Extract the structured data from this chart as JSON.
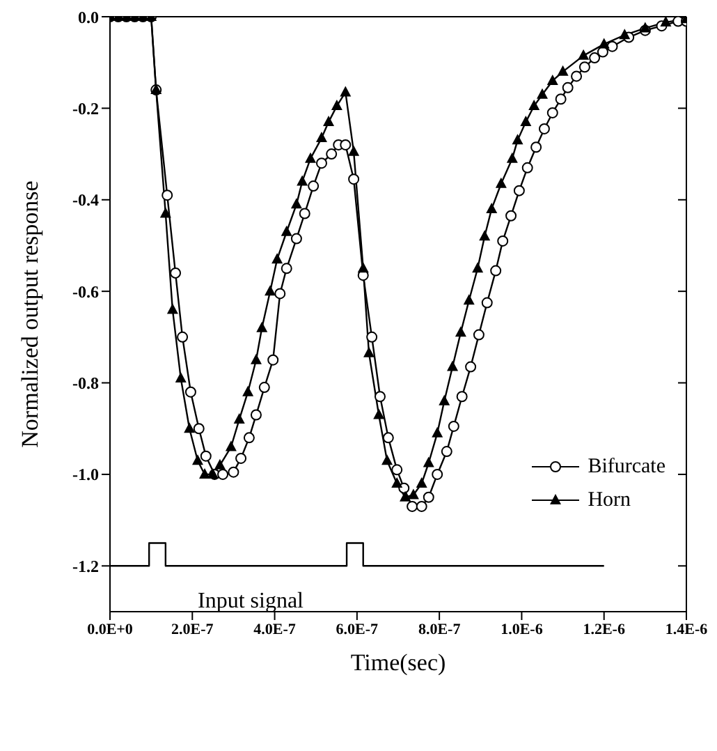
{
  "chart_data": {
    "type": "line",
    "xlabel": "Time(sec)",
    "ylabel": "Normalized output response",
    "xlim": [
      0,
      1.4e-06
    ],
    "ylim": [
      -1.3,
      0
    ],
    "xticks": [
      {
        "value": 0,
        "label": "0.0E+0"
      },
      {
        "value": 2e-07,
        "label": "2.0E-7"
      },
      {
        "value": 4e-07,
        "label": "4.0E-7"
      },
      {
        "value": 6e-07,
        "label": "6.0E-7"
      },
      {
        "value": 8e-07,
        "label": "8.0E-7"
      },
      {
        "value": 1e-06,
        "label": "1.0E-6"
      },
      {
        "value": 1.2e-06,
        "label": "1.2E-6"
      },
      {
        "value": 1.4e-06,
        "label": "1.4E-6"
      }
    ],
    "yticks": [
      {
        "value": 0,
        "label": "0.0"
      },
      {
        "value": -0.2,
        "label": "-0.2"
      },
      {
        "value": -0.4,
        "label": "-0.4"
      },
      {
        "value": -0.6,
        "label": "-0.6"
      },
      {
        "value": -0.8,
        "label": "-0.8"
      },
      {
        "value": -1,
        "label": "-1.0"
      },
      {
        "value": -1.2,
        "label": "-1.2"
      }
    ],
    "legend": "right",
    "line_style": "solid",
    "annotations": [
      "Input signal"
    ],
    "series": [
      {
        "name": "Bifurcate",
        "color": "#000000",
        "marker": "circle",
        "x": [
          0,
          2e-08,
          4e-08,
          6e-08,
          8e-08,
          1e-07,
          1.12e-07,
          1.39e-07,
          1.59e-07,
          1.76e-07,
          1.96e-07,
          2.16e-07,
          2.33e-07,
          2.54e-07,
          2.74e-07,
          3e-07,
          3.18e-07,
          3.38e-07,
          3.55e-07,
          3.75e-07,
          3.96e-07,
          4.13e-07,
          4.29e-07,
          4.53e-07,
          4.73e-07,
          4.94e-07,
          5.14e-07,
          5.38e-07,
          5.55e-07,
          5.72e-07,
          5.92e-07,
          6.15e-07,
          6.36e-07,
          6.56e-07,
          6.76e-07,
          6.97e-07,
          7.14e-07,
          7.34e-07,
          7.57e-07,
          7.74e-07,
          7.95e-07,
          8.18e-07,
          8.35e-07,
          8.55e-07,
          8.76e-07,
          8.96e-07,
          9.16e-07,
          9.37e-07,
          9.54e-07,
          9.74e-07,
          9.94e-07,
          1.014e-06,
          1.035e-06,
          1.055e-06,
          1.075e-06,
          1.095e-06,
          1.112e-06,
          1.133e-06,
          1.153e-06,
          1.177e-06,
          1.197e-06,
          1.22e-06,
          1.26e-06,
          1.3e-06,
          1.34e-06,
          1.38e-06,
          1.4e-06
        ],
        "values": [
          0,
          0,
          0,
          0,
          0,
          0,
          -0.16,
          -0.39,
          -0.56,
          -0.7,
          -0.82,
          -0.9,
          -0.96,
          -1.0,
          -1.0,
          -0.995,
          -0.965,
          -0.92,
          -0.87,
          -0.81,
          -0.75,
          -0.605,
          -0.55,
          -0.485,
          -0.43,
          -0.37,
          -0.32,
          -0.3,
          -0.28,
          -0.28,
          -0.355,
          -0.565,
          -0.7,
          -0.83,
          -0.92,
          -0.99,
          -1.03,
          -1.07,
          -1.07,
          -1.05,
          -1.0,
          -0.95,
          -0.895,
          -0.83,
          -0.765,
          -0.695,
          -0.625,
          -0.555,
          -0.49,
          -0.435,
          -0.38,
          -0.33,
          -0.285,
          -0.245,
          -0.21,
          -0.18,
          -0.155,
          -0.13,
          -0.11,
          -0.09,
          -0.077,
          -0.065,
          -0.045,
          -0.03,
          -0.02,
          -0.01,
          -0.01
        ]
      },
      {
        "name": "Horn",
        "color": "#000000",
        "marker": "triangle",
        "x": [
          0,
          2e-08,
          4e-08,
          6e-08,
          8e-08,
          1e-07,
          1.12e-07,
          1.35e-07,
          1.52e-07,
          1.72e-07,
          1.93e-07,
          2.13e-07,
          2.3e-07,
          2.5e-07,
          2.67e-07,
          2.94e-07,
          3.14e-07,
          3.35e-07,
          3.55e-07,
          3.69e-07,
          3.89e-07,
          4.06e-07,
          4.29e-07,
          4.53e-07,
          4.67e-07,
          4.87e-07,
          5.14e-07,
          5.31e-07,
          5.51e-07,
          5.72e-07,
          5.92e-07,
          6.15e-07,
          6.29e-07,
          6.53e-07,
          6.73e-07,
          6.97e-07,
          7.17e-07,
          7.37e-07,
          7.57e-07,
          7.74e-07,
          7.95e-07,
          8.12e-07,
          8.32e-07,
          8.52e-07,
          8.72e-07,
          8.93e-07,
          9.1e-07,
          9.27e-07,
          9.5e-07,
          9.77e-07,
          9.9e-07,
          1.01e-06,
          1.03e-06,
          1.05e-06,
          1.075e-06,
          1.1e-06,
          1.15e-06,
          1.2e-06,
          1.25e-06,
          1.3e-06,
          1.35e-06,
          1.4e-06
        ],
        "values": [
          0,
          0,
          0,
          0,
          0,
          0,
          -0.16,
          -0.43,
          -0.64,
          -0.79,
          -0.9,
          -0.97,
          -1.0,
          -1.0,
          -0.98,
          -0.94,
          -0.88,
          -0.82,
          -0.75,
          -0.68,
          -0.6,
          -0.53,
          -0.47,
          -0.41,
          -0.36,
          -0.31,
          -0.265,
          -0.23,
          -0.195,
          -0.165,
          -0.295,
          -0.55,
          -0.735,
          -0.87,
          -0.97,
          -1.02,
          -1.05,
          -1.045,
          -1.02,
          -0.975,
          -0.91,
          -0.84,
          -0.765,
          -0.69,
          -0.62,
          -0.55,
          -0.48,
          -0.42,
          -0.365,
          -0.31,
          -0.27,
          -0.23,
          -0.195,
          -0.17,
          -0.14,
          -0.12,
          -0.085,
          -0.06,
          -0.04,
          -0.025,
          -0.012,
          -0.005
        ]
      },
      {
        "color": "#000000",
        "marker": "none",
        "x": [
          0,
          9.5e-08,
          9.5e-08,
          1.35e-07,
          1.35e-07,
          5.75e-07,
          5.75e-07,
          6.15e-07,
          6.15e-07,
          1.2e-06
        ],
        "values": [
          -1.2,
          -1.2,
          -1.15,
          -1.15,
          -1.2,
          -1.2,
          -1.15,
          -1.15,
          -1.2,
          -1.2
        ]
      }
    ]
  }
}
